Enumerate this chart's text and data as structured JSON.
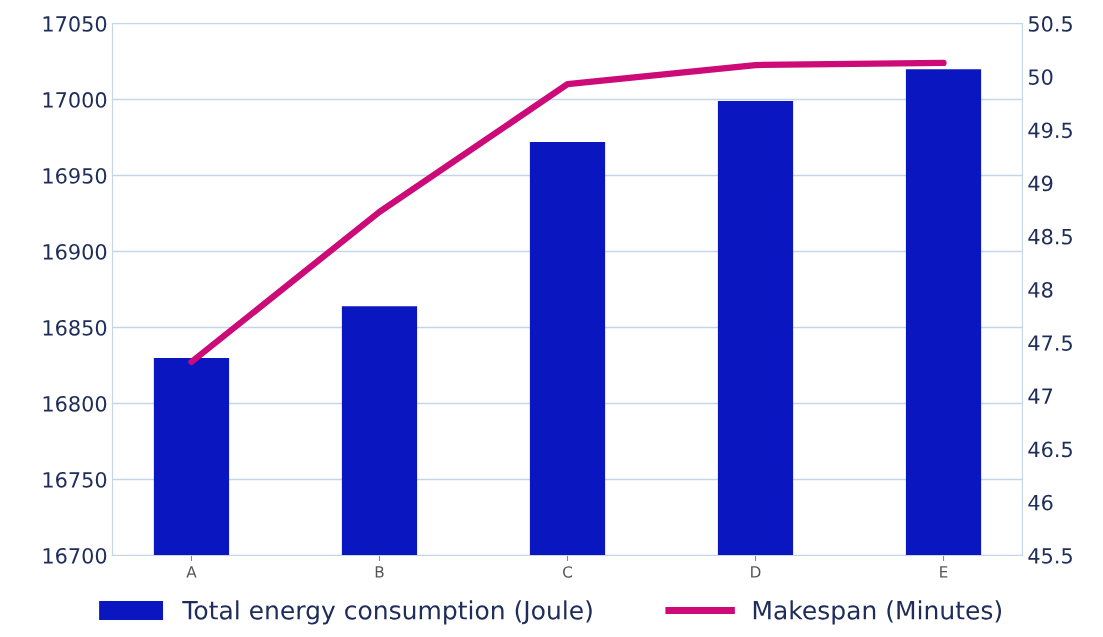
{
  "chart_data": {
    "type": "bar",
    "categories": [
      "A",
      "B",
      "C",
      "D",
      "E"
    ],
    "series": [
      {
        "name": "Total energy consumption (Joule)",
        "color": "#0a17c0",
        "values": [
          16830,
          16864,
          16972,
          16999,
          17020
        ]
      },
      {
        "name": "Makespan (Minutes)",
        "type": "line",
        "axis": "y2",
        "color": "#cc0a78",
        "values": [
          47.32,
          48.73,
          49.93,
          50.11,
          50.13
        ]
      }
    ],
    "ylim": [
      16700,
      17050
    ],
    "yticks": [
      16700,
      16750,
      16800,
      16850,
      16900,
      16950,
      17000,
      17050
    ],
    "y2lim": [
      45.5,
      50.5
    ],
    "y2ticks": [
      45.5,
      46,
      46.5,
      47,
      47.5,
      48,
      48.5,
      49,
      49.5,
      50,
      50.5
    ],
    "grid": "y",
    "legend": "bottom",
    "marker": "none",
    "line_style": "solid"
  }
}
